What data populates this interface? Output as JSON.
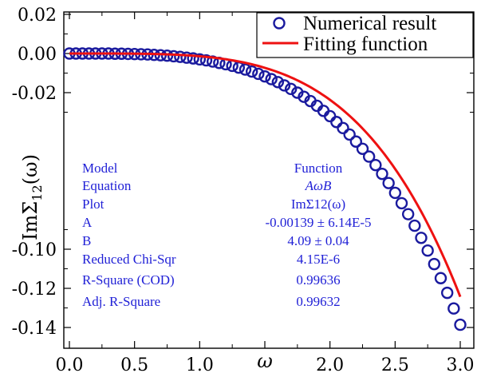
{
  "chart_data": {
    "type": "scatter",
    "xlabel": "ω",
    "ylabel": "ImΣ12(ω)",
    "xlim": [
      0.0,
      3.05
    ],
    "ylim": [
      -0.145,
      0.02
    ],
    "x_tick_labels": [
      "0.0",
      "0.5",
      "1.0",
      "ω",
      "2.0",
      "2.5",
      "3.0"
    ],
    "x_tick_values": [
      0.0,
      0.5,
      1.0,
      1.5,
      2.0,
      2.5,
      3.0
    ],
    "y_tick_labels": [
      "0.02",
      "0.00",
      "-0.02",
      "-0.10",
      "-0.12",
      "-0.14"
    ],
    "y_tick_values": [
      0.02,
      0.0,
      -0.02,
      -0.1,
      -0.12,
      -0.14
    ],
    "y_label_parts": {
      "main": "ImΣ",
      "sub": "12",
      "arg": "(ω)"
    },
    "series": [
      {
        "name": "Numerical result",
        "kind": "markers",
        "marker": "open-circle",
        "color": "#1a1a9e",
        "x": [
          0.0,
          0.05,
          0.1,
          0.15,
          0.2,
          0.25,
          0.3,
          0.35,
          0.4,
          0.45,
          0.5,
          0.55,
          0.6,
          0.65,
          0.7,
          0.75,
          0.8,
          0.85,
          0.9,
          0.95,
          1.0,
          1.05,
          1.1,
          1.15,
          1.2,
          1.25,
          1.3,
          1.35,
          1.4,
          1.45,
          1.5,
          1.55,
          1.6,
          1.65,
          1.7,
          1.75,
          1.8,
          1.85,
          1.9,
          1.95,
          2.0,
          2.05,
          2.1,
          2.15,
          2.2,
          2.25,
          2.3,
          2.35,
          2.4,
          2.45,
          2.5,
          2.55,
          2.6,
          2.65,
          2.7,
          2.75,
          2.8,
          2.85,
          2.9,
          2.95,
          3.0
        ],
        "y": [
          0.0,
          0.0,
          0.0,
          0.0,
          0.0,
          0.0,
          0.0,
          -0.0001,
          -0.0001,
          -0.0002,
          -0.0003,
          -0.0004,
          -0.0005,
          -0.0007,
          -0.0009,
          -0.0011,
          -0.0014,
          -0.0017,
          -0.0021,
          -0.0025,
          -0.003,
          -0.0035,
          -0.0041,
          -0.0048,
          -0.0055,
          -0.0063,
          -0.0072,
          -0.0082,
          -0.0092,
          -0.0104,
          -0.0117,
          -0.0131,
          -0.0146,
          -0.0163,
          -0.0181,
          -0.02,
          -0.0221,
          -0.0243,
          -0.0267,
          -0.0293,
          -0.032,
          -0.035,
          -0.0381,
          -0.0414,
          -0.045,
          -0.0487,
          -0.0527,
          -0.057,
          -0.0615,
          -0.0662,
          -0.0712,
          -0.0765,
          -0.0821,
          -0.088,
          -0.0942,
          -0.1007,
          -0.1076,
          -0.1148,
          -0.1223,
          -0.1303,
          -0.1386
        ]
      },
      {
        "name": "Fitting function",
        "kind": "line",
        "color": "#ee1111",
        "formula": "A*x^B",
        "A": -0.00139,
        "B": 4.09
      }
    ],
    "legend": {
      "position": "top-right",
      "items": [
        "Numerical result",
        "Fitting function"
      ]
    },
    "stats_table": {
      "rows": [
        {
          "label": "Model",
          "value": "Function"
        },
        {
          "label": "Equation",
          "value": "AωB"
        },
        {
          "label": "Plot",
          "value": "ImΣ12(ω)"
        },
        {
          "label": "A",
          "value": "-0.00139 ± 6.14E-5"
        },
        {
          "label": "B",
          "value": "4.09 ± 0.04"
        },
        {
          "label": "Reduced Chi-Sqr",
          "value": "4.15E-6"
        },
        {
          "label": "R-Square (COD)",
          "value": "0.99636"
        },
        {
          "label": "Adj. R-Square",
          "value": "0.99632"
        }
      ],
      "color": "#1f1fd6"
    },
    "grid": false
  }
}
